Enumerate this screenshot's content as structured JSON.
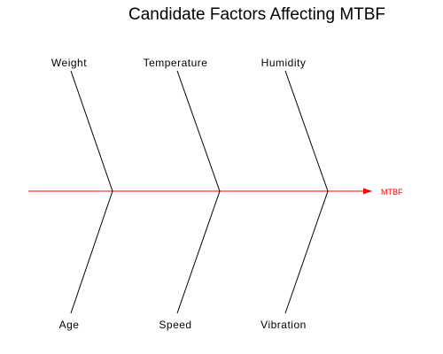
{
  "diagram": {
    "title": "Candidate Factors Affecting MTBF",
    "effect": "MTBF",
    "spine_color": "#ff0000",
    "bone_color": "#000000",
    "causes_top": [
      "Weight",
      "Temperature",
      "Humidity"
    ],
    "causes_bottom": [
      "Age",
      "Speed",
      "Vibration"
    ]
  }
}
